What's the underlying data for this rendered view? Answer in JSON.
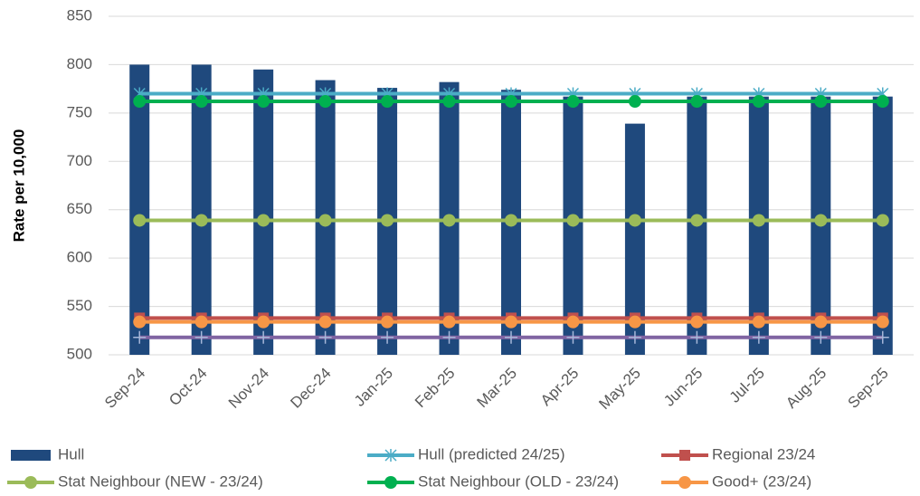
{
  "chart_data": {
    "type": "bar",
    "y_label": "Rate per 10,000",
    "categories": [
      "Sep-24",
      "Oct-24",
      "Nov-24",
      "Dec-24",
      "Jan-25",
      "Feb-25",
      "Mar-25",
      "Apr-25",
      "May-25",
      "Jun-25",
      "Jul-25",
      "Aug-25",
      "Sep-25"
    ],
    "ylim": [
      500,
      850
    ],
    "yticks": [
      500,
      550,
      600,
      650,
      700,
      750,
      800,
      850
    ],
    "grid": true,
    "legend": "bottom",
    "series": [
      {
        "name": "Hull",
        "type": "bar",
        "color": "#1f497d",
        "values": [
          800,
          800,
          795,
          784,
          776,
          782,
          774,
          767,
          739,
          767,
          767,
          767,
          767
        ]
      },
      {
        "name": "Hull (predicted 24/25)",
        "type": "line",
        "marker": "star",
        "color": "#4bacc6",
        "values": [
          770,
          770,
          770,
          770,
          770,
          770,
          770,
          770,
          770,
          770,
          770,
          770,
          770
        ]
      },
      {
        "name": "Regional 23/24",
        "type": "line",
        "marker": "square",
        "color": "#c0504d",
        "values": [
          538,
          538,
          538,
          538,
          538,
          538,
          538,
          538,
          538,
          538,
          538,
          538,
          538
        ]
      },
      {
        "name": "Stat Neighbour (NEW - 23/24)",
        "type": "line",
        "marker": "circle",
        "color": "#9bbb59",
        "values": [
          639,
          639,
          639,
          639,
          639,
          639,
          639,
          639,
          639,
          639,
          639,
          639,
          639
        ]
      },
      {
        "name": "Stat Neighbour (OLD - 23/24)",
        "type": "line",
        "marker": "circle",
        "color": "#00b050",
        "values": [
          762,
          762,
          762,
          762,
          762,
          762,
          762,
          762,
          762,
          762,
          762,
          762,
          762
        ]
      },
      {
        "name": "Good+ (23/24)",
        "type": "line",
        "marker": "circle",
        "color": "#f79646",
        "values": [
          534,
          534,
          534,
          534,
          534,
          534,
          534,
          534,
          534,
          534,
          534,
          534,
          534
        ]
      },
      {
        "type": "line",
        "marker": "plus",
        "color": "#8064a2",
        "values": [
          518,
          518,
          518,
          518,
          518,
          518,
          518,
          518,
          518,
          518,
          518,
          518,
          518
        ]
      }
    ]
  }
}
